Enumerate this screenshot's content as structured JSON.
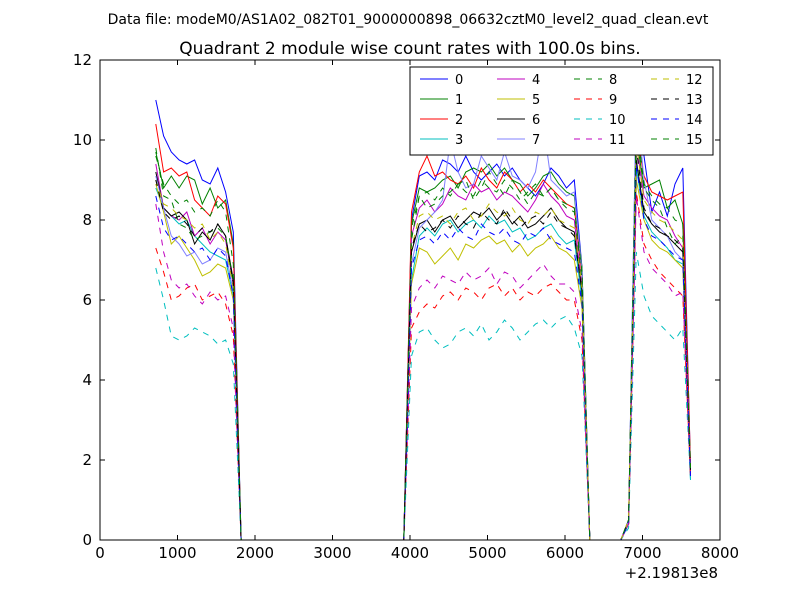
{
  "chart_data": {
    "type": "line",
    "suptitle": "Data file: modeM0/AS1A02_082T01_9000000898_06632cztM0_level2_quad_clean.evt",
    "title": "Quadrant 2 module wise count rates with 100.0s bins.",
    "xlabel": "",
    "ylabel": "",
    "x_offset_label": "+2.19813e8",
    "xlim": [
      0,
      8000
    ],
    "ylim": [
      0,
      12
    ],
    "xticks": [
      0,
      1000,
      2000,
      3000,
      4000,
      5000,
      6000,
      7000,
      8000
    ],
    "yticks": [
      0,
      2,
      4,
      6,
      8,
      10,
      12
    ],
    "grid": false,
    "legend_position": "top-right",
    "x": [
      720,
      820,
      920,
      1020,
      1120,
      1220,
      1320,
      1420,
      1520,
      1620,
      1720,
      1820,
      1920,
      2020,
      2120,
      2220,
      2320,
      2420,
      2520,
      2620,
      2720,
      2820,
      2920,
      3020,
      3120,
      3220,
      3320,
      3420,
      3520,
      3620,
      3720,
      3820,
      3920,
      4020,
      4120,
      4220,
      4320,
      4420,
      4520,
      4620,
      4720,
      4820,
      4920,
      5020,
      5120,
      5220,
      5320,
      5420,
      5520,
      5620,
      5720,
      5820,
      5920,
      6020,
      6120,
      6220,
      6320,
      6420,
      6520,
      6620,
      6720,
      6820,
      6920,
      7020,
      7120,
      7220,
      7320,
      7420,
      7520,
      7620
    ],
    "series": [
      {
        "name": "0",
        "color": "#0000ff",
        "dash": "solid",
        "values": [
          11.0,
          10.1,
          9.7,
          9.5,
          9.4,
          9.5,
          9.0,
          8.9,
          9.3,
          8.7,
          7.7,
          0,
          0,
          0,
          0,
          0,
          0,
          0,
          0,
          0,
          0,
          0,
          0,
          0,
          0,
          0,
          0,
          0,
          0,
          0,
          0,
          0,
          0,
          8.0,
          9.1,
          9.2,
          9.0,
          9.5,
          9.4,
          9.2,
          9.6,
          9.2,
          9.0,
          9.2,
          9.4,
          9.1,
          9.3,
          9.0,
          8.8,
          8.6,
          8.9,
          9.3,
          9.1,
          8.8,
          9.0,
          6.8,
          0,
          0,
          0,
          0,
          0,
          0.4,
          11.1,
          9.6,
          8.2,
          8.7,
          8.1,
          8.9,
          9.3,
          1.8
        ]
      },
      {
        "name": "1",
        "color": "#008000",
        "dash": "solid",
        "values": [
          9.7,
          8.8,
          9.1,
          8.8,
          9.1,
          9.0,
          8.4,
          8.8,
          8.3,
          8.5,
          7.4,
          0,
          0,
          0,
          0,
          0,
          0,
          0,
          0,
          0,
          0,
          0,
          0,
          0,
          0,
          0,
          0,
          0,
          0,
          0,
          0,
          0,
          0,
          7.9,
          8.8,
          8.7,
          8.8,
          9.0,
          9.1,
          8.8,
          9.2,
          9.3,
          9.2,
          9.4,
          9.1,
          9.3,
          9.0,
          8.9,
          8.6,
          8.8,
          9.1,
          9.2,
          8.9,
          8.7,
          8.6,
          6.8,
          0,
          0,
          0,
          0,
          0,
          0.5,
          10.1,
          8.8,
          8.9,
          9.0,
          8.3,
          8.5,
          7.9,
          1.7
        ]
      },
      {
        "name": "2",
        "color": "#ff0000",
        "dash": "solid",
        "values": [
          10.4,
          9.2,
          9.3,
          9.1,
          9.2,
          8.5,
          8.3,
          8.1,
          8.6,
          8.4,
          7.3,
          0,
          0,
          0,
          0,
          0,
          0,
          0,
          0,
          0,
          0,
          0,
          0,
          0,
          0,
          0,
          0,
          0,
          0,
          0,
          0,
          0,
          0,
          8.2,
          9.2,
          9.6,
          9.1,
          9.2,
          9.0,
          8.9,
          9.1,
          8.8,
          9.3,
          9.0,
          8.8,
          9.2,
          9.0,
          8.7,
          8.9,
          8.7,
          9.0,
          8.8,
          8.6,
          8.4,
          8.3,
          6.6,
          0,
          0,
          0,
          0,
          0,
          0.5,
          10.2,
          9.1,
          8.7,
          8.6,
          8.5,
          8.6,
          8.7,
          1.9
        ]
      },
      {
        "name": "3",
        "color": "#00bfbf",
        "dash": "solid",
        "values": [
          8.8,
          8.3,
          8.1,
          7.9,
          8.0,
          7.6,
          7.4,
          7.2,
          7.1,
          7.0,
          6.1,
          0,
          0,
          0,
          0,
          0,
          0,
          0,
          0,
          0,
          0,
          0,
          0,
          0,
          0,
          0,
          0,
          0,
          0,
          0,
          0,
          0,
          0,
          6.5,
          7.6,
          7.8,
          7.6,
          7.9,
          8.0,
          7.7,
          7.9,
          8.0,
          7.8,
          8.1,
          7.9,
          8.0,
          7.7,
          7.8,
          7.5,
          7.6,
          7.8,
          7.9,
          7.6,
          7.4,
          7.5,
          6.0,
          0,
          0,
          0,
          0,
          0,
          0.4,
          9.3,
          8.1,
          7.7,
          7.5,
          7.3,
          7.0,
          6.9,
          1.5
        ]
      },
      {
        "name": "4",
        "color": "#bf00bf",
        "dash": "solid",
        "values": [
          9.4,
          8.3,
          8.1,
          8.0,
          8.2,
          7.6,
          7.8,
          7.4,
          7.7,
          7.5,
          6.4,
          0,
          0,
          0,
          0,
          0,
          0,
          0,
          0,
          0,
          0,
          0,
          0,
          0,
          0,
          0,
          0,
          0,
          0,
          0,
          0,
          0,
          0,
          7.6,
          8.3,
          8.5,
          8.2,
          8.4,
          8.8,
          8.6,
          8.5,
          8.9,
          8.7,
          8.8,
          8.5,
          8.7,
          8.6,
          8.4,
          8.2,
          8.5,
          8.9,
          8.6,
          8.4,
          8.1,
          8.0,
          6.3,
          0,
          0,
          0,
          0,
          0,
          0.5,
          9.9,
          8.6,
          8.3,
          8.1,
          8.0,
          7.6,
          7.3,
          1.6
        ]
      },
      {
        "name": "5",
        "color": "#bfbf00",
        "dash": "solid",
        "values": [
          8.9,
          8.2,
          7.4,
          7.6,
          7.3,
          7.0,
          6.6,
          6.7,
          6.9,
          6.8,
          6.0,
          0,
          0,
          0,
          0,
          0,
          0,
          0,
          0,
          0,
          0,
          0,
          0,
          0,
          0,
          0,
          0,
          0,
          0,
          0,
          0,
          0,
          0,
          6.4,
          7.3,
          7.2,
          6.9,
          7.1,
          7.3,
          7.0,
          7.4,
          7.3,
          7.5,
          7.6,
          7.4,
          7.5,
          7.2,
          7.4,
          7.1,
          7.3,
          7.4,
          7.6,
          7.3,
          7.2,
          7.0,
          5.8,
          0,
          0,
          0,
          0,
          0,
          0.4,
          9.0,
          8.0,
          7.5,
          7.3,
          7.2,
          7.0,
          6.8,
          1.6
        ]
      },
      {
        "name": "6",
        "color": "#000000",
        "dash": "solid",
        "values": [
          9.2,
          8.3,
          8.1,
          8.2,
          8.0,
          7.4,
          7.7,
          7.5,
          7.9,
          7.6,
          6.5,
          0,
          0,
          0,
          0,
          0,
          0,
          0,
          0,
          0,
          0,
          0,
          0,
          0,
          0,
          0,
          0,
          0,
          0,
          0,
          0,
          0,
          0,
          7.2,
          7.9,
          8.0,
          7.7,
          8.0,
          8.1,
          7.8,
          8.0,
          8.2,
          8.1,
          8.3,
          8.0,
          8.2,
          7.9,
          8.1,
          7.8,
          7.9,
          8.1,
          8.3,
          8.0,
          7.8,
          7.7,
          6.2,
          0,
          0,
          0,
          0,
          0,
          0.5,
          9.5,
          8.2,
          7.9,
          7.7,
          7.6,
          7.4,
          7.2,
          1.7
        ]
      },
      {
        "name": "7",
        "color": "#8080ff",
        "dash": "solid",
        "values": [
          9.1,
          8.3,
          7.6,
          7.4,
          7.1,
          7.2,
          6.9,
          7.0,
          7.3,
          7.2,
          6.2,
          0,
          0,
          0,
          0,
          0,
          0,
          0,
          0,
          0,
          0,
          0,
          0,
          0,
          0,
          0,
          0,
          0,
          0,
          0,
          0,
          0,
          0,
          6.9,
          7.8,
          8.0,
          8.2,
          8.5,
          10.0,
          9.2,
          8.8,
          8.9,
          9.6,
          9.3,
          9.0,
          9.7,
          9.1,
          9.0,
          8.8,
          9.2,
          10.4,
          9.0,
          8.8,
          8.6,
          8.7,
          6.7,
          0,
          0,
          0,
          0,
          0,
          0.5,
          11.1,
          9.0,
          8.0,
          7.8,
          7.6,
          7.2,
          7.0,
          1.7
        ]
      },
      {
        "name": "8",
        "color": "#008000",
        "dash": "dash",
        "values": [
          9.8,
          8.6,
          8.5,
          7.9,
          7.8,
          7.5,
          7.6,
          7.7,
          7.8,
          7.6,
          6.4,
          0,
          0,
          0,
          0,
          0,
          0,
          0,
          0,
          0,
          0,
          0,
          0,
          0,
          0,
          0,
          0,
          0,
          0,
          0,
          0,
          0,
          0,
          7.5,
          8.6,
          8.3,
          8.4,
          8.6,
          8.7,
          8.9,
          9.0,
          8.5,
          8.8,
          9.2,
          8.9,
          8.6,
          9.0,
          8.7,
          8.4,
          8.7,
          8.6,
          8.8,
          8.5,
          8.3,
          8.2,
          6.5,
          0,
          0,
          0,
          0,
          0,
          0.5,
          10.6,
          8.8,
          8.5,
          8.3,
          7.8,
          7.4,
          7.6,
          1.7
        ]
      },
      {
        "name": "9",
        "color": "#ff0000",
        "dash": "dash",
        "values": [
          7.3,
          6.7,
          6.0,
          6.1,
          6.3,
          6.4,
          6.0,
          6.1,
          6.2,
          5.9,
          5.1,
          0,
          0,
          0,
          0,
          0,
          0,
          0,
          0,
          0,
          0,
          0,
          0,
          0,
          0,
          0,
          0,
          0,
          0,
          0,
          0,
          0,
          0,
          5.3,
          5.7,
          5.9,
          5.8,
          6.1,
          6.2,
          6.0,
          6.3,
          6.2,
          6.0,
          6.3,
          6.4,
          6.1,
          6.3,
          6.0,
          6.2,
          6.1,
          6.3,
          6.4,
          6.2,
          6.0,
          6.0,
          5.0,
          0,
          0,
          0,
          0,
          0,
          0.4,
          8.7,
          7.4,
          7.0,
          6.7,
          6.5,
          6.3,
          6.1,
          1.6
        ]
      },
      {
        "name": "10",
        "color": "#00bfbf",
        "dash": "dash",
        "values": [
          6.8,
          6.0,
          5.1,
          5.0,
          5.1,
          5.3,
          5.2,
          5.1,
          4.9,
          5.0,
          4.4,
          0,
          0,
          0,
          0,
          0,
          0,
          0,
          0,
          0,
          0,
          0,
          0,
          0,
          0,
          0,
          0,
          0,
          0,
          0,
          0,
          0,
          0,
          4.6,
          5.2,
          5.3,
          5.0,
          4.8,
          4.9,
          5.2,
          5.3,
          5.1,
          5.4,
          5.0,
          5.2,
          5.5,
          5.3,
          5.0,
          5.2,
          5.4,
          5.5,
          5.3,
          5.5,
          5.6,
          5.3,
          4.6,
          0,
          0,
          0,
          0,
          0,
          0.3,
          7.2,
          6.1,
          5.6,
          5.4,
          5.2,
          5.0,
          5.3,
          1.5
        ]
      },
      {
        "name": "11",
        "color": "#bf00bf",
        "dash": "dash",
        "values": [
          8.4,
          7.2,
          6.5,
          6.3,
          6.4,
          6.1,
          5.9,
          6.2,
          6.0,
          6.1,
          5.3,
          0,
          0,
          0,
          0,
          0,
          0,
          0,
          0,
          0,
          0,
          0,
          0,
          0,
          0,
          0,
          0,
          0,
          0,
          0,
          0,
          0,
          0,
          5.8,
          6.3,
          6.5,
          6.3,
          6.6,
          6.5,
          6.4,
          6.7,
          6.5,
          6.6,
          6.8,
          6.4,
          6.7,
          6.6,
          6.3,
          6.5,
          6.7,
          6.9,
          6.6,
          6.4,
          6.4,
          6.2,
          5.2,
          0,
          0,
          0,
          0,
          0,
          0.4,
          8.6,
          7.2,
          6.8,
          6.6,
          6.4,
          6.1,
          6.2,
          1.6
        ]
      },
      {
        "name": "12",
        "color": "#bfbf00",
        "dash": "dash",
        "values": [
          9.0,
          8.4,
          8.3,
          8.1,
          8.0,
          7.8,
          7.9,
          7.5,
          7.7,
          7.4,
          6.3,
          0,
          0,
          0,
          0,
          0,
          0,
          0,
          0,
          0,
          0,
          0,
          0,
          0,
          0,
          0,
          0,
          0,
          0,
          0,
          0,
          0,
          0,
          7.3,
          8.1,
          8.2,
          8.0,
          8.1,
          7.9,
          8.2,
          8.3,
          8.0,
          8.1,
          8.4,
          8.2,
          8.1,
          8.3,
          8.0,
          7.9,
          8.2,
          8.1,
          8.3,
          8.0,
          7.9,
          7.8,
          6.3,
          0,
          0,
          0,
          0,
          0,
          0.5,
          9.9,
          8.5,
          8.2,
          8.0,
          7.9,
          7.7,
          7.5,
          1.7
        ]
      },
      {
        "name": "13",
        "color": "#000000",
        "dash": "dash",
        "values": [
          9.0,
          8.2,
          8.0,
          8.1,
          7.9,
          7.6,
          7.8,
          7.7,
          7.9,
          7.6,
          6.4,
          0,
          0,
          0,
          0,
          0,
          0,
          0,
          0,
          0,
          0,
          0,
          0,
          0,
          0,
          0,
          0,
          0,
          0,
          0,
          0,
          0,
          0,
          7.3,
          7.9,
          7.7,
          7.8,
          8.0,
          7.8,
          8.1,
          7.9,
          7.8,
          8.2,
          8.0,
          7.9,
          8.3,
          8.0,
          7.8,
          8.0,
          8.1,
          7.9,
          8.2,
          7.9,
          7.8,
          7.6,
          6.2,
          0,
          0,
          0,
          0,
          0,
          0.5,
          9.8,
          8.3,
          7.9,
          7.8,
          7.6,
          7.5,
          7.3,
          1.7
        ]
      },
      {
        "name": "14",
        "color": "#0000ff",
        "dash": "dash",
        "values": [
          8.6,
          7.8,
          7.5,
          7.6,
          7.4,
          7.2,
          7.3,
          7.0,
          7.3,
          7.1,
          6.1,
          0,
          0,
          0,
          0,
          0,
          0,
          0,
          0,
          0,
          0,
          0,
          0,
          0,
          0,
          0,
          0,
          0,
          0,
          0,
          0,
          0,
          0,
          6.8,
          7.5,
          7.6,
          7.4,
          7.7,
          7.5,
          7.8,
          7.6,
          7.5,
          7.9,
          7.7,
          7.6,
          7.8,
          7.5,
          7.4,
          7.7,
          7.6,
          7.8,
          7.5,
          7.4,
          7.3,
          7.2,
          5.9,
          0,
          0,
          0,
          0,
          0,
          0.4,
          9.4,
          8.0,
          7.6,
          7.5,
          7.3,
          7.1,
          7.0,
          1.6
        ]
      },
      {
        "name": "15",
        "color": "#008000",
        "dash": "dash",
        "values": [
          9.6,
          8.9,
          8.6,
          8.4,
          8.5,
          8.2,
          8.3,
          8.1,
          8.5,
          8.2,
          6.9,
          0,
          0,
          0,
          0,
          0,
          0,
          0,
          0,
          0,
          0,
          0,
          0,
          0,
          0,
          0,
          0,
          0,
          0,
          0,
          0,
          0,
          0,
          7.8,
          8.6,
          8.7,
          8.5,
          8.8,
          8.6,
          8.9,
          8.7,
          8.6,
          9.0,
          8.8,
          8.7,
          9.0,
          8.8,
          8.5,
          8.7,
          8.9,
          8.6,
          8.8,
          8.5,
          8.4,
          8.3,
          6.7,
          0,
          0,
          0,
          0,
          0,
          0.5,
          10.4,
          8.9,
          8.6,
          8.4,
          8.3,
          8.0,
          7.9,
          1.8
        ]
      }
    ]
  }
}
